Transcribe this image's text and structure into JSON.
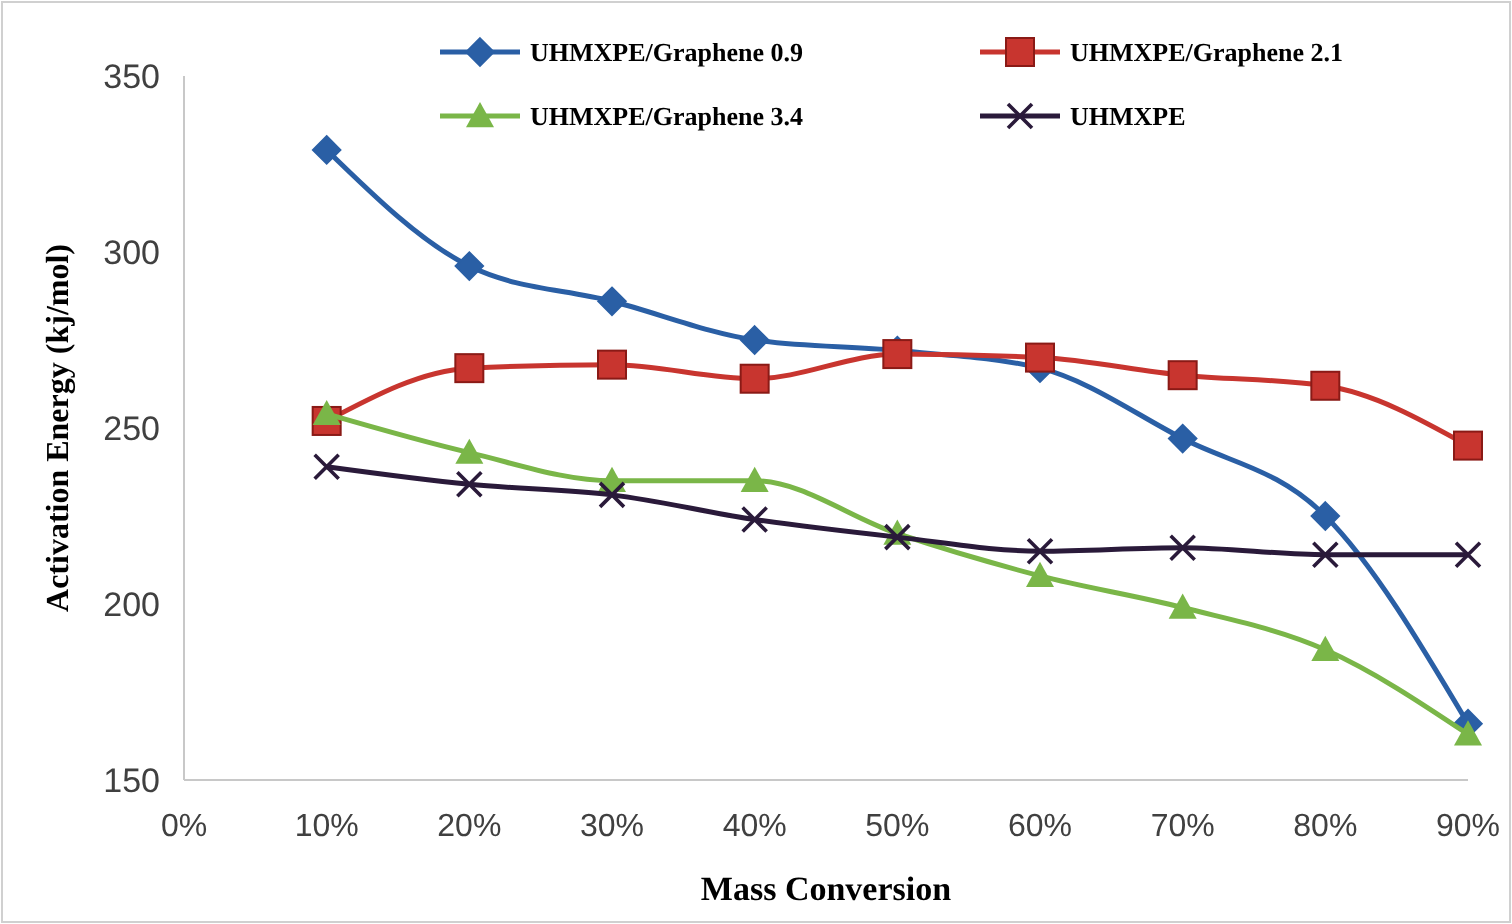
{
  "chart_data": {
    "type": "line",
    "xlabel": "Mass Conversion",
    "ylabel": "Activation Energy (kj/mol)",
    "x": [
      10,
      20,
      30,
      40,
      50,
      60,
      70,
      80,
      90
    ],
    "xlim": [
      0,
      90
    ],
    "xticks": [
      {
        "value": 0,
        "label": "0%"
      },
      {
        "value": 10,
        "label": "10%"
      },
      {
        "value": 20,
        "label": "20%"
      },
      {
        "value": 30,
        "label": "30%"
      },
      {
        "value": 40,
        "label": "40%"
      },
      {
        "value": 50,
        "label": "50%"
      },
      {
        "value": 60,
        "label": "60%"
      },
      {
        "value": 70,
        "label": "70%"
      },
      {
        "value": 80,
        "label": "80%"
      },
      {
        "value": 90,
        "label": "90%"
      }
    ],
    "ylim": [
      150,
      350
    ],
    "yticks": [
      150,
      200,
      250,
      300,
      350
    ],
    "grid": false,
    "legend": "top",
    "series": [
      {
        "name": "UHMXPE/Graphene 0.9",
        "color": "#2a5fa5",
        "marker": "diamond",
        "values": [
          329,
          296,
          286,
          275,
          272,
          267,
          247,
          225,
          166
        ]
      },
      {
        "name": "UHMXPE/Graphene 2.1",
        "color": "#c8352f",
        "marker": "square",
        "values": [
          252,
          267,
          268,
          264,
          271,
          270,
          265,
          262,
          245
        ]
      },
      {
        "name": "UHMXPE/Graphene 3.4",
        "color": "#7ab648",
        "marker": "triangle",
        "values": [
          254,
          243,
          235,
          235,
          220,
          208,
          199,
          187,
          163
        ]
      },
      {
        "name": "UHMXPE",
        "color": "#2a1a3a",
        "marker": "cross",
        "values": [
          239,
          234,
          231,
          224,
          219,
          215,
          216,
          214,
          214
        ]
      }
    ]
  }
}
